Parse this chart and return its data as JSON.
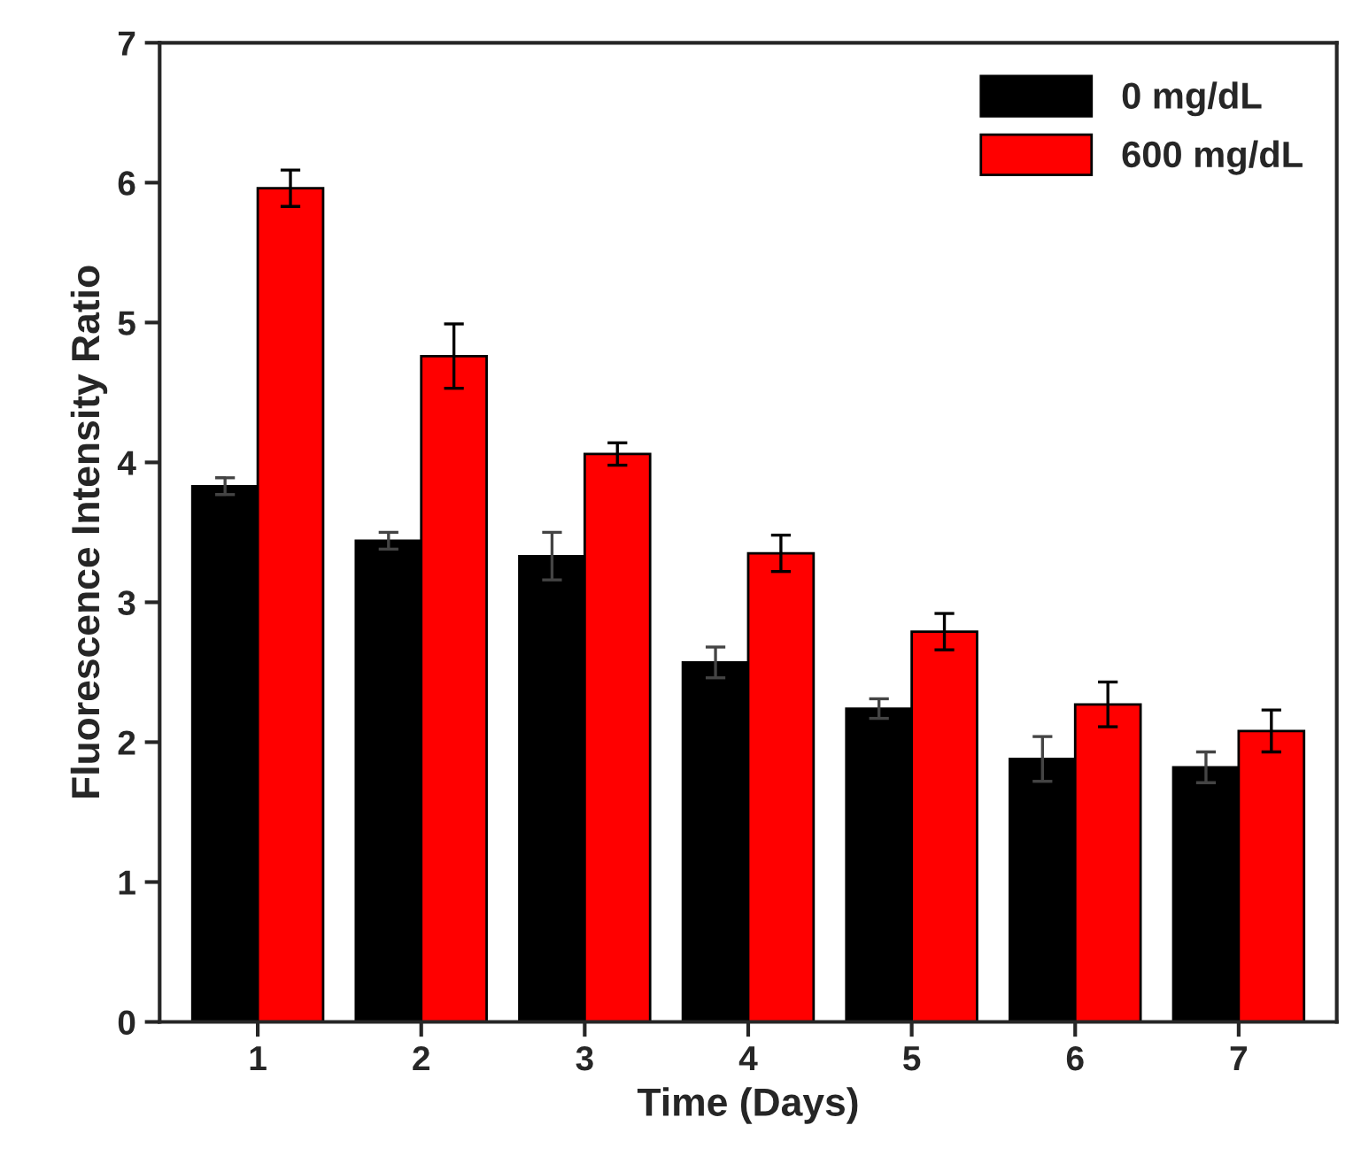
{
  "chart_data": {
    "type": "bar",
    "xlabel": "Time (Days)",
    "ylabel": "Fluorescence Intensity Ratio",
    "categories": [
      "1",
      "2",
      "3",
      "4",
      "5",
      "6",
      "7"
    ],
    "series": [
      {
        "name": "0 mg/dL",
        "color": "#000000",
        "values": [
          3.83,
          3.44,
          3.33,
          2.57,
          2.24,
          1.88,
          1.82
        ],
        "errors": [
          0.06,
          0.06,
          0.17,
          0.11,
          0.07,
          0.16,
          0.11
        ]
      },
      {
        "name": "600 mg/dL",
        "color": "#ff0000",
        "values": [
          5.96,
          4.76,
          4.06,
          3.35,
          2.79,
          2.27,
          2.08
        ],
        "errors": [
          0.13,
          0.23,
          0.08,
          0.13,
          0.13,
          0.16,
          0.15
        ]
      }
    ],
    "ylim": [
      0,
      7
    ],
    "yticks": [
      0,
      1,
      2,
      3,
      4,
      5,
      6,
      7
    ],
    "legend": "top right",
    "grid": false
  }
}
